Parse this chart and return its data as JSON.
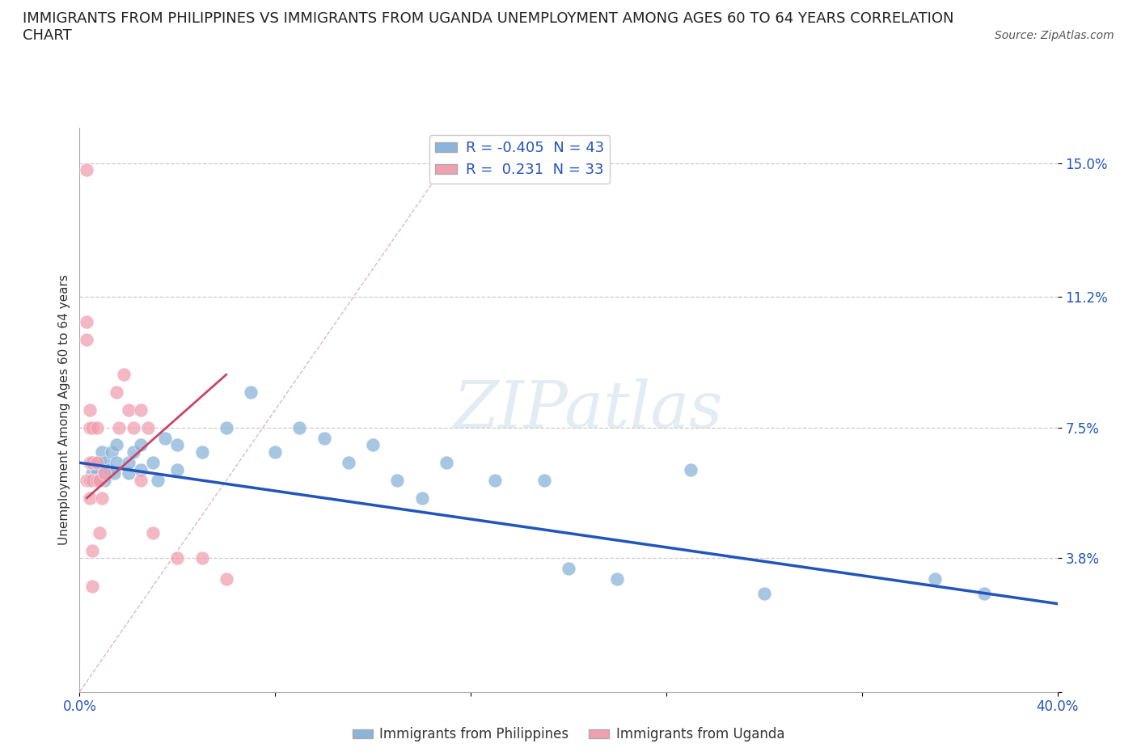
{
  "title": "IMMIGRANTS FROM PHILIPPINES VS IMMIGRANTS FROM UGANDA UNEMPLOYMENT AMONG AGES 60 TO 64 YEARS CORRELATION\nCHART",
  "source": "Source: ZipAtlas.com",
  "ylabel": "Unemployment Among Ages 60 to 64 years",
  "xlim": [
    0.0,
    0.4
  ],
  "ylim": [
    0.0,
    0.16
  ],
  "xticks": [
    0.0,
    0.08,
    0.16,
    0.24,
    0.32,
    0.4
  ],
  "xticklabels": [
    "0.0%",
    "",
    "",
    "",
    "",
    "40.0%"
  ],
  "yticks_right": [
    0.0,
    0.038,
    0.075,
    0.112,
    0.15
  ],
  "ytick_right_labels": [
    "",
    "3.8%",
    "7.5%",
    "11.2%",
    "15.0%"
  ],
  "grid_color": "#cccccc",
  "watermark": "ZIPatlas",
  "blue_color": "#8ab4d9",
  "pink_color": "#f0a0b0",
  "blue_line_color": "#2255bb",
  "pink_line_color": "#cc4466",
  "diag_color": "#ddbbbb",
  "R_blue": -0.405,
  "N_blue": 43,
  "R_pink": 0.231,
  "N_pink": 33,
  "legend_blue": "Immigrants from Philippines",
  "legend_pink": "Immigrants from Uganda",
  "philippines_x": [
    0.005,
    0.005,
    0.007,
    0.008,
    0.008,
    0.009,
    0.01,
    0.01,
    0.01,
    0.012,
    0.013,
    0.014,
    0.015,
    0.015,
    0.02,
    0.02,
    0.022,
    0.025,
    0.025,
    0.03,
    0.032,
    0.035,
    0.04,
    0.04,
    0.05,
    0.06,
    0.07,
    0.08,
    0.09,
    0.1,
    0.11,
    0.12,
    0.13,
    0.14,
    0.15,
    0.17,
    0.19,
    0.2,
    0.22,
    0.25,
    0.28,
    0.35,
    0.37
  ],
  "philippines_y": [
    0.062,
    0.065,
    0.063,
    0.06,
    0.065,
    0.068,
    0.06,
    0.062,
    0.065,
    0.063,
    0.068,
    0.062,
    0.065,
    0.07,
    0.062,
    0.065,
    0.068,
    0.063,
    0.07,
    0.065,
    0.06,
    0.072,
    0.063,
    0.07,
    0.068,
    0.075,
    0.085,
    0.068,
    0.075,
    0.072,
    0.065,
    0.07,
    0.06,
    0.055,
    0.065,
    0.06,
    0.06,
    0.035,
    0.032,
    0.063,
    0.028,
    0.032,
    0.028
  ],
  "uganda_x": [
    0.003,
    0.003,
    0.003,
    0.003,
    0.004,
    0.004,
    0.004,
    0.004,
    0.004,
    0.005,
    0.005,
    0.005,
    0.005,
    0.005,
    0.007,
    0.007,
    0.007,
    0.008,
    0.008,
    0.009,
    0.01,
    0.015,
    0.016,
    0.018,
    0.02,
    0.022,
    0.025,
    0.025,
    0.028,
    0.03,
    0.04,
    0.05,
    0.06
  ],
  "uganda_y": [
    0.148,
    0.105,
    0.1,
    0.06,
    0.08,
    0.075,
    0.065,
    0.06,
    0.055,
    0.075,
    0.065,
    0.06,
    0.04,
    0.03,
    0.075,
    0.065,
    0.06,
    0.06,
    0.045,
    0.055,
    0.062,
    0.085,
    0.075,
    0.09,
    0.08,
    0.075,
    0.08,
    0.06,
    0.075,
    0.045,
    0.038,
    0.038,
    0.032
  ],
  "blue_trendline_x": [
    0.0,
    0.4
  ],
  "blue_trendline_y": [
    0.065,
    0.025
  ],
  "pink_trendline_x": [
    0.003,
    0.06
  ],
  "pink_trendline_y": [
    0.055,
    0.09
  ],
  "diag_line_x": [
    0.0,
    0.15
  ],
  "diag_line_y": [
    0.0,
    0.15
  ],
  "background_color": "#ffffff",
  "title_fontsize": 13,
  "axis_label_fontsize": 11,
  "tick_fontsize": 12,
  "tick_color": "#2255bb"
}
